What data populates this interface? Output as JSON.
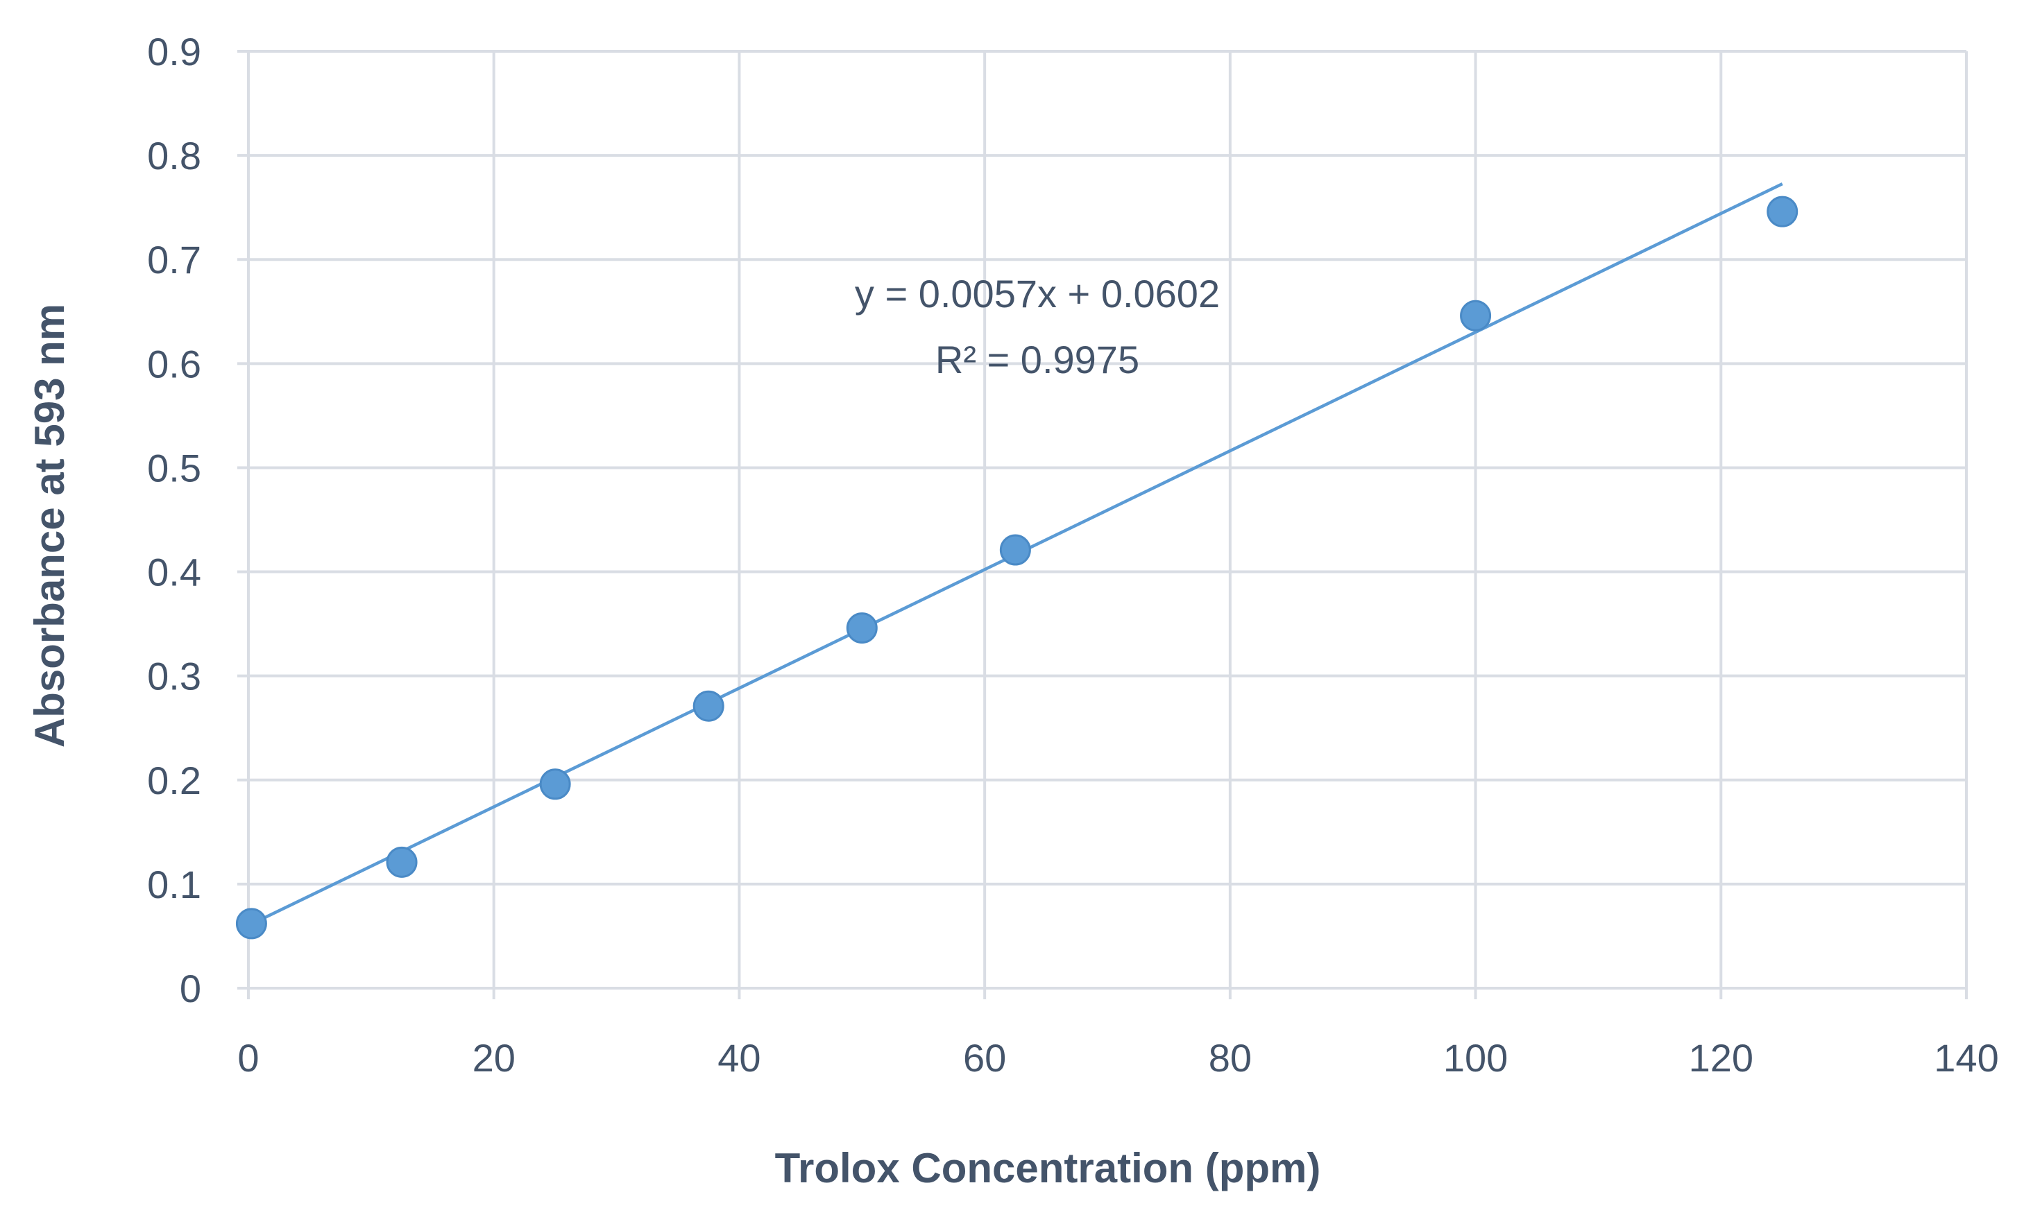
{
  "chart_data": {
    "type": "scatter",
    "title": "",
    "xlabel": "Trolox Concentration  (ppm)",
    "ylabel": "Absorbance  at 593 nm",
    "xlim": [
      0,
      140
    ],
    "ylim": [
      0,
      0.9
    ],
    "x_ticks": [
      "0",
      "20",
      "40",
      "60",
      "80",
      "100",
      "120",
      "140"
    ],
    "y_ticks": [
      "0",
      "0.1",
      "0.2",
      "0.3",
      "0.4",
      "0.5",
      "0.6",
      "0.7",
      "0.8",
      "0.9"
    ],
    "grid": true,
    "series": [
      {
        "x": [
          0.25,
          12.5,
          25,
          37.5,
          50,
          62.5,
          100,
          125
        ],
        "y": [
          0.062,
          0.121,
          0.196,
          0.271,
          0.346,
          0.421,
          0.646,
          0.746
        ],
        "color": "#5b9bd5"
      }
    ],
    "trendline": {
      "slope": 0.0057,
      "intercept": 0.0602,
      "x_range": [
        0,
        125
      ],
      "equation": "y = 0.0057x + 0.0602",
      "r_squared": "R² = 0.9975"
    }
  }
}
